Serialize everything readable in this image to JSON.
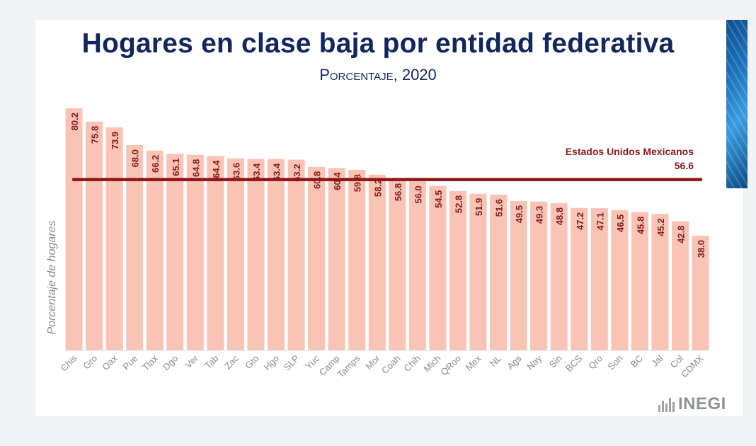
{
  "chart_data": {
    "type": "bar",
    "title": "Hogares en clase baja por entidad federativa",
    "subtitle": "Porcentaje, 2020",
    "ylabel": "Porcentaje de hogares",
    "xlabel": "",
    "ylim": [
      0,
      80.2
    ],
    "categories": [
      "Chis",
      "Gro",
      "Oax",
      "Pue",
      "Tlax",
      "Dgo",
      "Ver",
      "Tab",
      "Zac",
      "Gto",
      "Hgo",
      "SLP",
      "Yuc",
      "Camp",
      "Tamps",
      "Mor",
      "Coah",
      "Chih",
      "Mich",
      "QRoo",
      "Mex",
      "NL",
      "Ags",
      "Nay",
      "Sin",
      "BCS",
      "Qro",
      "Son",
      "BC",
      "Jal",
      "Col",
      "CDMX"
    ],
    "values": [
      80.2,
      75.8,
      73.9,
      68.0,
      66.2,
      65.1,
      64.8,
      64.4,
      63.6,
      63.4,
      63.4,
      63.2,
      60.8,
      60.4,
      59.8,
      58.2,
      56.8,
      56.0,
      54.5,
      52.8,
      51.9,
      51.6,
      49.5,
      49.3,
      48.8,
      47.2,
      47.1,
      46.5,
      45.8,
      45.2,
      42.8,
      38.0
    ],
    "value_labels": [
      "80.2",
      "75.8",
      "73.9",
      "68.0",
      "66.2",
      "65.1",
      "64.8",
      "64.4",
      "63.6",
      "63.4",
      "63.4",
      "63.2",
      "60.8",
      "60.4",
      "59.8",
      "58.2",
      "56.8",
      "56.0",
      "54.5",
      "52.8",
      "51.9",
      "51.6",
      "49.5",
      "49.3",
      "48.8",
      "47.2",
      "47.1",
      "46.5",
      "45.8",
      "45.2",
      "42.8",
      "38.0"
    ],
    "reference_line": {
      "label": "Estados Unidos Mexicanos",
      "value": 56.6,
      "value_label": "56.6"
    },
    "grid": false,
    "legend": "none",
    "colors": {
      "bar": "#f9c3b6",
      "reference": "#8b1414",
      "label": "#8b1a1a",
      "axis_text": "#8c8c8c",
      "title": "#13275c"
    }
  },
  "logo": {
    "text": "INEGI"
  }
}
